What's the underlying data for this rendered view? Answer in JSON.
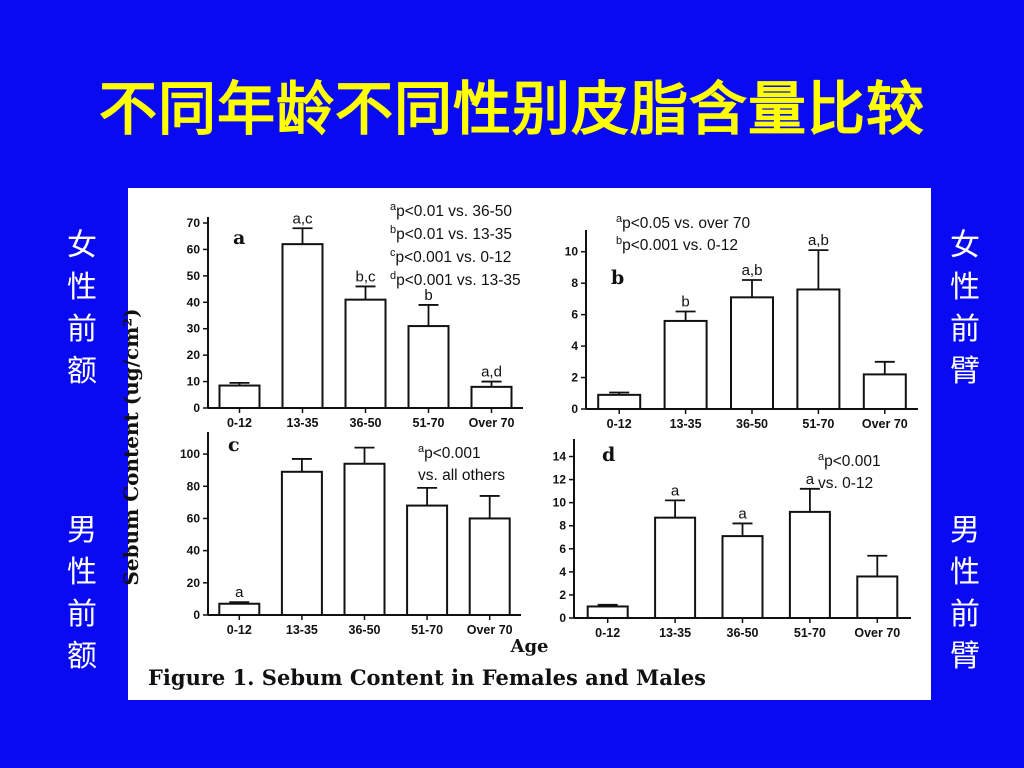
{
  "slide": {
    "title": "不同年龄不同性别皮脂含量比较",
    "left_top_label": "女性前额",
    "left_bottom_label": "男性前额",
    "right_top_label": "女性前臂",
    "right_bottom_label": "男性前臂",
    "background_color": "#0a0af2",
    "title_color": "#ffff00"
  },
  "figure": {
    "caption": "Figure 1. Sebum Content in Females and Males",
    "y_label": "Sebum Content (ug/cm²)",
    "x_label": "Age"
  },
  "chart_data": [
    {
      "type": "bar",
      "panel": "a",
      "categories": [
        "0-12",
        "13-35",
        "36-50",
        "51-70",
        "Over 70"
      ],
      "values": [
        8.5,
        62,
        41,
        31,
        8
      ],
      "errors": [
        1,
        6,
        5,
        8,
        2
      ],
      "bar_labels": [
        "",
        "a,c",
        "b,c",
        "b",
        "a,d"
      ],
      "ylim": [
        0,
        70
      ],
      "yticks": [
        0,
        10,
        20,
        30,
        40,
        50,
        60,
        70
      ],
      "notes": [
        "ap<0.01 vs. 36-50",
        "bp<0.01 vs. 13-35",
        "cp<0.001 vs. 0-12",
        "dp<0.001 vs. 13-35"
      ]
    },
    {
      "type": "bar",
      "panel": "b",
      "categories": [
        "0-12",
        "13-35",
        "36-50",
        "51-70",
        "Over 70"
      ],
      "values": [
        0.9,
        5.6,
        7.1,
        7.6,
        2.2
      ],
      "errors": [
        0.15,
        0.6,
        1.1,
        2.5,
        0.8
      ],
      "bar_labels": [
        "",
        "b",
        "a,b",
        "a,b",
        ""
      ],
      "ylim": [
        0,
        11
      ],
      "yticks": [
        0,
        2,
        4,
        6,
        8,
        10
      ],
      "notes": [
        "ap<0.05 vs. over 70",
        "bp<0.001 vs. 0-12"
      ]
    },
    {
      "type": "bar",
      "panel": "c",
      "categories": [
        "0-12",
        "13-35",
        "36-50",
        "51-70",
        "Over 70"
      ],
      "values": [
        7,
        89,
        94,
        68,
        60
      ],
      "errors": [
        1,
        8,
        10,
        11,
        14
      ],
      "bar_labels": [
        "a",
        "",
        "",
        "",
        ""
      ],
      "ylim": [
        0,
        110
      ],
      "yticks": [
        0,
        20,
        40,
        60,
        80,
        100
      ],
      "notes": [
        "ap<0.001",
        "vs. all others"
      ]
    },
    {
      "type": "bar",
      "panel": "d",
      "categories": [
        "0-12",
        "13-35",
        "36-50",
        "51-70",
        "Over 70"
      ],
      "values": [
        1,
        8.7,
        7.1,
        9.2,
        3.6
      ],
      "errors": [
        0.15,
        1.5,
        1.1,
        2.0,
        1.8
      ],
      "bar_labels": [
        "",
        "a",
        "a",
        "a",
        ""
      ],
      "ylim": [
        0,
        15
      ],
      "yticks": [
        0,
        2,
        4,
        6,
        8,
        10,
        12,
        14
      ],
      "notes": [
        "ap<0.001",
        "vs. 0-12"
      ]
    }
  ]
}
